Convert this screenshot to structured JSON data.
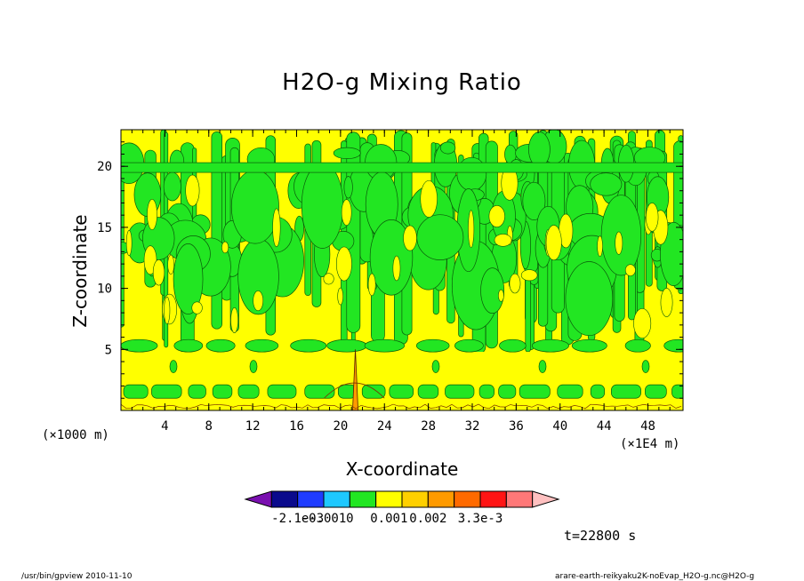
{
  "chart_data": {
    "type": "heatmap",
    "title": "H2O-g Mixing Ratio",
    "xlabel": "X-coordinate",
    "ylabel": "Z-coordinate",
    "x_unit_note_left": "(×1000 m)",
    "x_unit_note_right": "(×1E4 m)",
    "xlim": [
      0,
      51.2
    ],
    "ylim": [
      0,
      23
    ],
    "x_ticks": [
      "4",
      "8",
      "12",
      "16",
      "20",
      "24",
      "28",
      "32",
      "36",
      "40",
      "44",
      "48"
    ],
    "y_ticks": [
      "5",
      "10",
      "15",
      "20"
    ],
    "colorbar": {
      "labels": [
        "-2.1e-3",
        "-0.001",
        "0",
        "0.001",
        "0.002",
        "3.3e-3"
      ],
      "colors": [
        "#7a10b0",
        "#0a0a8c",
        "#1f3cff",
        "#1ec8ff",
        "#22e622",
        "#ffff00",
        "#ffd000",
        "#ff9a00",
        "#ff6a00",
        "#ff1414",
        "#ff7878",
        "#ffc0c0"
      ]
    },
    "background_level_color": "#ffff00",
    "anomaly_color": "#22e622"
  },
  "annotations": {
    "time": "t=22800 s",
    "footer_left": "/usr/bin/gpview   2010-11-10",
    "footer_right": "arare-earth-reikyaku2K-noEvap_H2O-g.nc@H2O-g"
  }
}
